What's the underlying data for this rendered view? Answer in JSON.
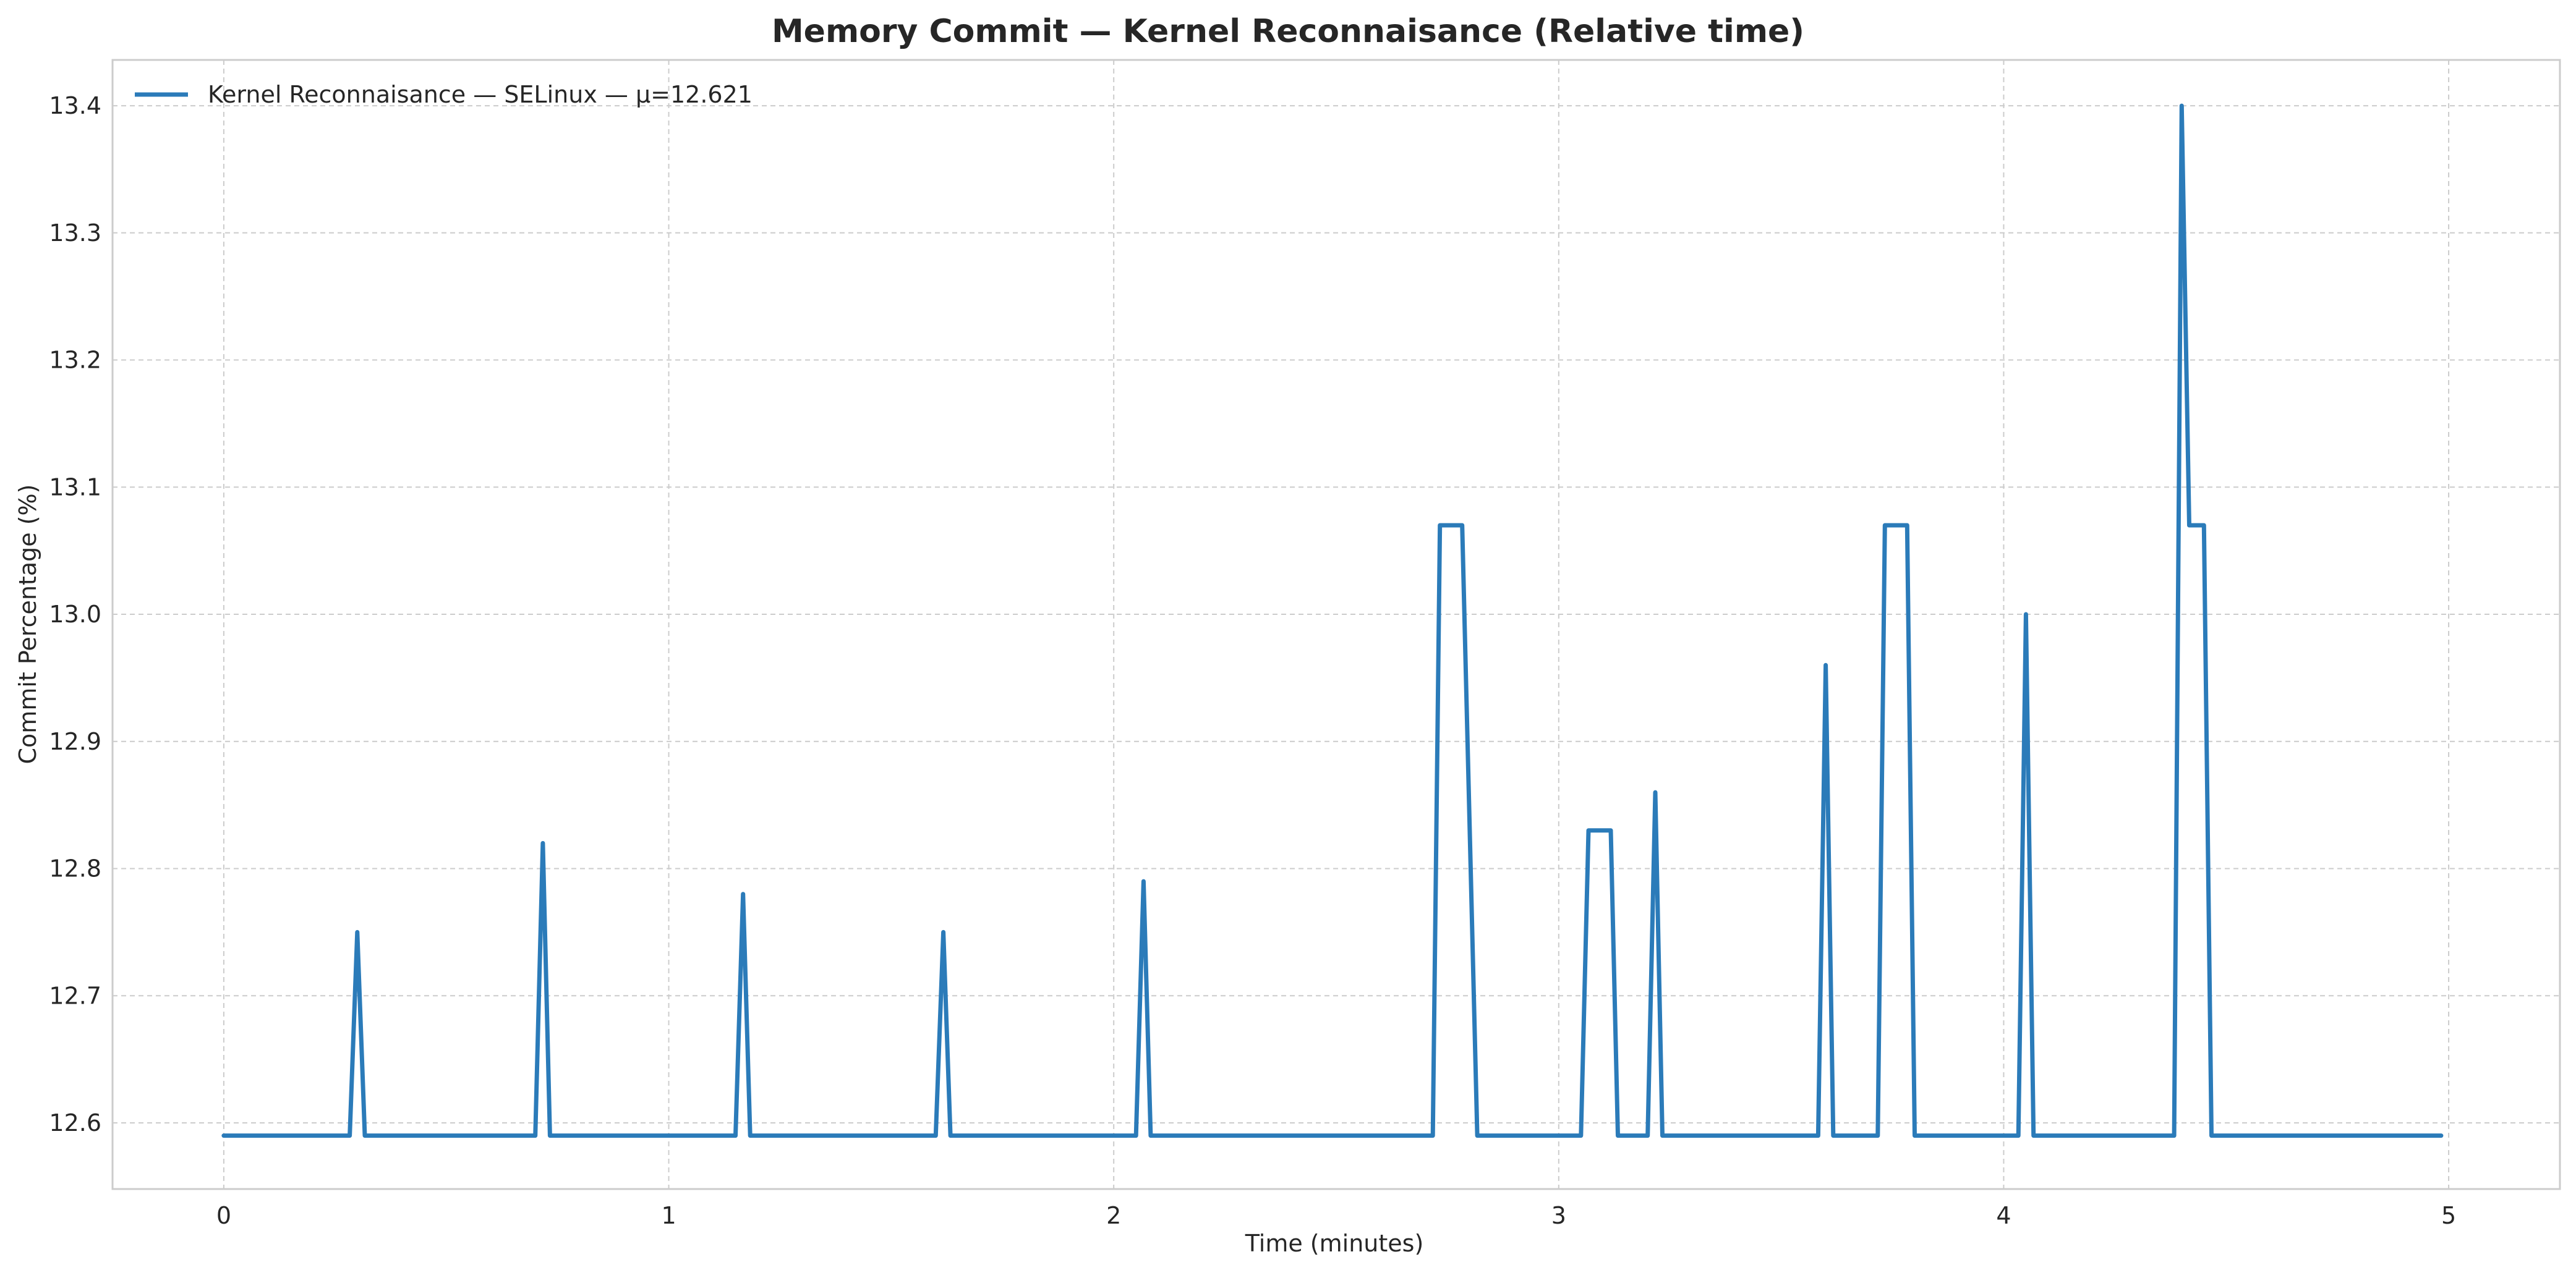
{
  "chart_data": {
    "type": "line",
    "title": "Memory Commit — Kernel Reconnaisance (Relative time)",
    "xlabel": "Time (minutes)",
    "ylabel": "Commit Percentage (%)",
    "xlim": [
      -0.25,
      5.25
    ],
    "ylim": [
      12.548,
      13.436
    ],
    "xticks": [
      0,
      1,
      2,
      3,
      4,
      5
    ],
    "xtick_labels": [
      "0",
      "1",
      "2",
      "3",
      "4",
      "5"
    ],
    "yticks": [
      12.6,
      12.7,
      12.8,
      12.9,
      13.0,
      13.1,
      13.2,
      13.3,
      13.4
    ],
    "ytick_labels": [
      "12.6",
      "12.7",
      "12.8",
      "12.9",
      "13.0",
      "13.1",
      "13.2",
      "13.3",
      "13.4"
    ],
    "grid": true,
    "legend_position": "top-left",
    "series": [
      {
        "name": "Kernel Reconnaisance — SELinux — μ=12.621",
        "color": "#2b7bb9",
        "x": [
          0,
          0.283,
          0.3,
          0.317,
          0.7,
          0.717,
          0.733,
          1.15,
          1.167,
          1.183,
          1.6,
          1.617,
          1.633,
          2.05,
          2.067,
          2.083,
          2.717,
          2.733,
          2.783,
          2.817,
          3.05,
          3.067,
          3.117,
          3.133,
          3.2,
          3.217,
          3.233,
          3.583,
          3.6,
          3.617,
          3.717,
          3.733,
          3.783,
          3.8,
          4.033,
          4.05,
          4.067,
          4.383,
          4.4,
          4.417,
          4.433,
          4.45,
          4.467,
          4.983
        ],
        "y": [
          12.59,
          12.59,
          12.75,
          12.59,
          12.59,
          12.82,
          12.59,
          12.59,
          12.78,
          12.59,
          12.59,
          12.75,
          12.59,
          12.59,
          12.79,
          12.59,
          12.59,
          13.07,
          13.07,
          12.59,
          12.59,
          12.83,
          12.83,
          12.59,
          12.59,
          12.86,
          12.59,
          12.59,
          12.96,
          12.59,
          12.59,
          13.07,
          13.07,
          12.59,
          12.59,
          13.0,
          12.59,
          12.59,
          13.4,
          13.07,
          13.07,
          13.07,
          12.59,
          12.59
        ]
      }
    ]
  }
}
